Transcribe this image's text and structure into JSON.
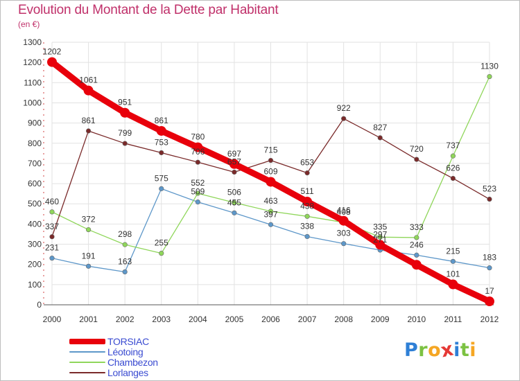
{
  "title": "Evolution du Montant de la Dette par Habitant",
  "subtitle": "(en €)",
  "brand": {
    "text": "Proxiti",
    "colors": [
      "#2e7fd6",
      "#7cc242",
      "#f5a623",
      "#e53935",
      "#2e7fd6",
      "#7cc242",
      "#f5a623"
    ]
  },
  "chart_data": {
    "type": "line",
    "x": [
      "2000",
      "2001",
      "2002",
      "2003",
      "2004",
      "2005",
      "2006",
      "2007",
      "2008",
      "2009",
      "2010",
      "2011",
      "2012"
    ],
    "ylim": [
      0,
      1300
    ],
    "yticks": [
      "0",
      "100",
      "200",
      "300",
      "400",
      "500",
      "600",
      "700",
      "800",
      "900",
      "1000",
      "1100",
      "1200",
      "1300"
    ],
    "grid": true,
    "legend_position": "bottom-left",
    "series": [
      {
        "name": "TORSIAC",
        "color": "#e8000b",
        "values": [
          1202,
          1061,
          951,
          861,
          780,
          697,
          609,
          511,
          416,
          297,
          198,
          101,
          17
        ],
        "labels": [
          "1202",
          "1061",
          "951",
          "861",
          "780",
          "697",
          "609",
          "511",
          "416",
          "297",
          "",
          "101",
          "17"
        ]
      },
      {
        "name": "Léotoing",
        "color": "#5d97c9",
        "values": [
          231,
          191,
          163,
          575,
          509,
          455,
          397,
          338,
          303,
          271,
          246,
          215,
          183
        ],
        "labels": [
          "231",
          "191",
          "163",
          "575",
          "509",
          "455",
          "397",
          "338",
          "303",
          "271",
          "246",
          "215",
          "183"
        ]
      },
      {
        "name": "Chambezon",
        "color": "#8fd65a",
        "values": [
          460,
          372,
          298,
          255,
          552,
          506,
          463,
          438,
          408,
          335,
          333,
          737,
          1130
        ],
        "labels": [
          "460",
          "372",
          "298",
          "255",
          "552",
          "506",
          "463",
          "438",
          "408",
          "335",
          "333",
          "737",
          "1130"
        ]
      },
      {
        "name": "Lorlanges",
        "color": "#7a2a2a",
        "values": [
          337,
          861,
          799,
          753,
          706,
          657,
          715,
          653,
          922,
          827,
          720,
          626,
          523
        ],
        "labels": [
          "337",
          "861",
          "799",
          "753",
          "706",
          "657",
          "715",
          "653",
          "922",
          "827",
          "720",
          "626",
          "523"
        ]
      }
    ]
  }
}
